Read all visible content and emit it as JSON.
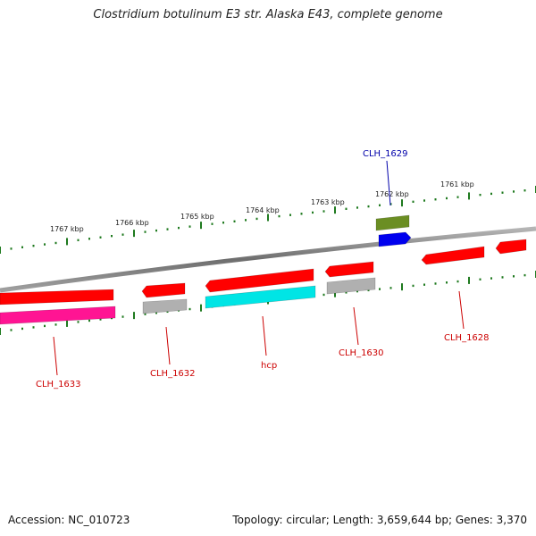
{
  "title": "Clostridium botulinum E3 str. Alaska E43, complete genome",
  "footer": {
    "accession": "Accession: NC_010723",
    "summary": "Topology: circular; Length: 3,659,644 bp; Genes: 3,370"
  },
  "colors": {
    "backbone": "#7a7a7a",
    "tick": "#1f7a1f",
    "label_forward": "#cc0000",
    "label_reverse": "#0000aa"
  },
  "scale_ticks": [
    "1767 kbp",
    "1766 kbp",
    "1765 kbp",
    "1764 kbp",
    "1763 kbp",
    "1762 kbp",
    "1761 kbp"
  ],
  "features": [
    {
      "id": "f1",
      "color": "#ff0000",
      "strand": "plus",
      "lane": 1
    },
    {
      "id": "f2",
      "color": "#ff1493",
      "strand": "plus",
      "lane": 2
    },
    {
      "id": "f3",
      "color": "#ff0000",
      "strand": "plus",
      "lane": 1
    },
    {
      "id": "f4",
      "color": "#b0b0b0",
      "strand": "plus",
      "lane": 2
    },
    {
      "id": "f5",
      "color": "#ff0000",
      "strand": "plus",
      "lane": 1
    },
    {
      "id": "f6",
      "color": "#00e5e5",
      "strand": "plus",
      "lane": 2
    },
    {
      "id": "f7",
      "color": "#ff0000",
      "strand": "plus",
      "lane": 1
    },
    {
      "id": "f8",
      "color": "#b0b0b0",
      "strand": "plus",
      "lane": 2
    },
    {
      "id": "f9",
      "color": "#ff0000",
      "strand": "plus",
      "lane": 1
    },
    {
      "id": "f10",
      "color": "#ff0000",
      "strand": "plus",
      "lane": 1
    },
    {
      "id": "f11",
      "color": "#6b8e23",
      "strand": "minus",
      "lane": 2
    },
    {
      "id": "f12",
      "color": "#0000ee",
      "strand": "minus",
      "lane": 1
    }
  ],
  "gene_labels": [
    {
      "text": "CLH_1633",
      "color": "#cc0000"
    },
    {
      "text": "CLH_1632",
      "color": "#cc0000"
    },
    {
      "text": "hcp",
      "color": "#cc0000"
    },
    {
      "text": "CLH_1630",
      "color": "#cc0000"
    },
    {
      "text": "CLH_1628",
      "color": "#cc0000"
    },
    {
      "text": "CLH_1629",
      "color": "#0000aa"
    }
  ]
}
